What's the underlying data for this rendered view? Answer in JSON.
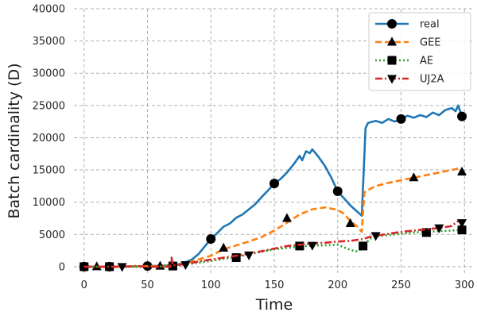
{
  "chart_data": {
    "type": "line",
    "title": "",
    "xlabel": "Time",
    "ylabel": "Batch cardinality (D)",
    "xlim": [
      -8,
      308
    ],
    "ylim": [
      -1000,
      40000
    ],
    "xticks": [
      0,
      50,
      100,
      150,
      200,
      250,
      300
    ],
    "yticks": [
      0,
      5000,
      10000,
      15000,
      20000,
      25000,
      30000,
      35000,
      40000
    ],
    "grid": true,
    "legend_position": "top-right",
    "series": [
      {
        "name": "real",
        "color": "#1f77b4",
        "dash": "solid",
        "marker": "circle",
        "points": [
          [
            0,
            0
          ],
          [
            10,
            0
          ],
          [
            20,
            0
          ],
          [
            30,
            0
          ],
          [
            40,
            50
          ],
          [
            50,
            100
          ],
          [
            60,
            150
          ],
          [
            70,
            250
          ],
          [
            75,
            400
          ],
          [
            80,
            700
          ],
          [
            85,
            1100
          ],
          [
            90,
            1900
          ],
          [
            95,
            3100
          ],
          [
            100,
            4300
          ],
          [
            105,
            5200
          ],
          [
            110,
            6200
          ],
          [
            115,
            6700
          ],
          [
            120,
            7600
          ],
          [
            125,
            8100
          ],
          [
            130,
            8900
          ],
          [
            135,
            9700
          ],
          [
            140,
            10800
          ],
          [
            145,
            11800
          ],
          [
            150,
            12900
          ],
          [
            155,
            13600
          ],
          [
            160,
            14600
          ],
          [
            165,
            15800
          ],
          [
            170,
            17200
          ],
          [
            172,
            16500
          ],
          [
            175,
            17900
          ],
          [
            178,
            17600
          ],
          [
            180,
            18200
          ],
          [
            185,
            17000
          ],
          [
            190,
            15600
          ],
          [
            195,
            13800
          ],
          [
            200,
            11700
          ],
          [
            205,
            10600
          ],
          [
            210,
            9500
          ],
          [
            215,
            8600
          ],
          [
            219,
            7900
          ],
          [
            222,
            21500
          ],
          [
            224,
            22300
          ],
          [
            230,
            22600
          ],
          [
            235,
            22300
          ],
          [
            240,
            22900
          ],
          [
            245,
            22500
          ],
          [
            250,
            22900
          ],
          [
            255,
            23400
          ],
          [
            260,
            23100
          ],
          [
            265,
            23500
          ],
          [
            270,
            23200
          ],
          [
            275,
            23900
          ],
          [
            280,
            23500
          ],
          [
            285,
            24300
          ],
          [
            290,
            24600
          ],
          [
            293,
            24100
          ],
          [
            295,
            25000
          ],
          [
            298,
            23300
          ]
        ],
        "markers": [
          [
            0,
            0
          ],
          [
            20,
            0
          ],
          [
            50,
            100
          ],
          [
            100,
            4300
          ],
          [
            150,
            12900
          ],
          [
            200,
            11700
          ],
          [
            250,
            22900
          ],
          [
            298,
            23300
          ]
        ]
      },
      {
        "name": "GEE",
        "color": "#ff7f0e",
        "dash": "dashed",
        "marker": "triangle-up",
        "points": [
          [
            0,
            0
          ],
          [
            10,
            0
          ],
          [
            20,
            0
          ],
          [
            30,
            0
          ],
          [
            50,
            100
          ],
          [
            60,
            100
          ],
          [
            70,
            200
          ],
          [
            80,
            500
          ],
          [
            90,
            1100
          ],
          [
            100,
            1700
          ],
          [
            110,
            2700
          ],
          [
            120,
            3300
          ],
          [
            130,
            3900
          ],
          [
            140,
            4600
          ],
          [
            150,
            5600
          ],
          [
            160,
            6800
          ],
          [
            170,
            8100
          ],
          [
            180,
            8900
          ],
          [
            190,
            9200
          ],
          [
            200,
            8800
          ],
          [
            205,
            8200
          ],
          [
            210,
            7100
          ],
          [
            215,
            6300
          ],
          [
            219,
            5400
          ],
          [
            221,
            11500
          ],
          [
            225,
            12000
          ],
          [
            230,
            12500
          ],
          [
            240,
            13000
          ],
          [
            250,
            13400
          ],
          [
            260,
            13800
          ],
          [
            270,
            14200
          ],
          [
            280,
            14600
          ],
          [
            290,
            15000
          ],
          [
            295,
            15200
          ],
          [
            298,
            14800
          ]
        ],
        "markers": [
          [
            10,
            0
          ],
          [
            60,
            100
          ],
          [
            110,
            2900
          ],
          [
            160,
            7500
          ],
          [
            210,
            6700
          ],
          [
            260,
            13800
          ],
          [
            298,
            14700
          ]
        ]
      },
      {
        "name": "AE",
        "color": "#2ca02c",
        "dash": "dotted",
        "marker": "square",
        "points": [
          [
            0,
            0
          ],
          [
            10,
            0
          ],
          [
            20,
            0
          ],
          [
            30,
            0
          ],
          [
            50,
            0
          ],
          [
            60,
            50
          ],
          [
            70,
            150
          ],
          [
            80,
            300
          ],
          [
            90,
            600
          ],
          [
            100,
            900
          ],
          [
            110,
            1200
          ],
          [
            120,
            1500
          ],
          [
            130,
            1900
          ],
          [
            140,
            2300
          ],
          [
            150,
            2700
          ],
          [
            160,
            2900
          ],
          [
            170,
            3100
          ],
          [
            180,
            3300
          ],
          [
            190,
            3300
          ],
          [
            200,
            3400
          ],
          [
            205,
            3000
          ],
          [
            210,
            2600
          ],
          [
            215,
            2400
          ],
          [
            220,
            2900
          ],
          [
            225,
            4300
          ],
          [
            230,
            4700
          ],
          [
            240,
            4900
          ],
          [
            250,
            5100
          ],
          [
            260,
            5300
          ],
          [
            270,
            5400
          ],
          [
            280,
            5500
          ],
          [
            290,
            5600
          ],
          [
            298,
            5700
          ]
        ],
        "markers": [
          [
            0,
            0
          ],
          [
            20,
            0
          ],
          [
            70,
            100
          ],
          [
            120,
            1400
          ],
          [
            170,
            3200
          ],
          [
            220,
            3200
          ],
          [
            270,
            5300
          ],
          [
            298,
            5700
          ]
        ]
      },
      {
        "name": "UJ2A",
        "color": "#d62728",
        "dash": "dashdot",
        "marker": "triangle-down",
        "points": [
          [
            0,
            0
          ],
          [
            10,
            0
          ],
          [
            20,
            0
          ],
          [
            30,
            0
          ],
          [
            40,
            100
          ],
          [
            50,
            0
          ],
          [
            60,
            0
          ],
          [
            68,
            0
          ],
          [
            69,
            1400
          ],
          [
            70,
            200
          ],
          [
            80,
            400
          ],
          [
            90,
            800
          ],
          [
            100,
            1100
          ],
          [
            110,
            1400
          ],
          [
            120,
            1700
          ],
          [
            130,
            2000
          ],
          [
            140,
            2400
          ],
          [
            150,
            2800
          ],
          [
            160,
            3200
          ],
          [
            170,
            3400
          ],
          [
            180,
            3600
          ],
          [
            190,
            3700
          ],
          [
            200,
            3900
          ],
          [
            210,
            4000
          ],
          [
            220,
            4300
          ],
          [
            225,
            4600
          ],
          [
            230,
            4800
          ],
          [
            240,
            5100
          ],
          [
            250,
            5400
          ],
          [
            260,
            5600
          ],
          [
            270,
            5800
          ],
          [
            280,
            6000
          ],
          [
            290,
            6300
          ],
          [
            295,
            7100
          ],
          [
            298,
            6800
          ]
        ],
        "markers": [
          [
            30,
            0
          ],
          [
            80,
            300
          ],
          [
            130,
            1800
          ],
          [
            180,
            3300
          ],
          [
            230,
            4800
          ],
          [
            280,
            6000
          ],
          [
            298,
            6800
          ]
        ]
      }
    ]
  }
}
